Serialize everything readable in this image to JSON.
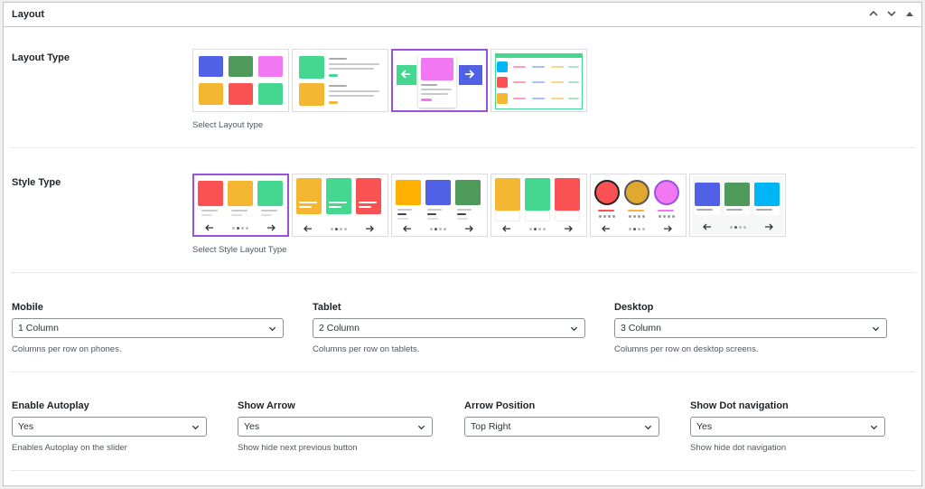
{
  "panel": {
    "title": "Layout"
  },
  "layout_type": {
    "label": "Layout Type",
    "description": "Select Layout type",
    "options": [
      "grid",
      "list",
      "slider",
      "table"
    ],
    "selected": "slider"
  },
  "style_type": {
    "label": "Style Type",
    "description": "Select Style Layout Type",
    "options": [
      "style-1",
      "style-2",
      "style-3",
      "style-4",
      "style-5",
      "style-6"
    ],
    "selected": "style-1"
  },
  "columns": {
    "mobile": {
      "label": "Mobile",
      "value": "1 Column",
      "description": "Columns per row on phones."
    },
    "tablet": {
      "label": "Tablet",
      "value": "2 Column",
      "description": "Columns per row on tablets."
    },
    "desktop": {
      "label": "Desktop",
      "value": "3 Column",
      "description": "Columns per row on desktop screens."
    }
  },
  "slider": {
    "autoplay": {
      "label": "Enable Autoplay",
      "value": "Yes",
      "description": "Enables Autoplay on the slider"
    },
    "show_arrow": {
      "label": "Show Arrow",
      "value": "Yes",
      "description": "Show hide next previous button"
    },
    "arrow_position": {
      "label": "Arrow Position",
      "value": "Top Right",
      "description": ""
    },
    "show_dots": {
      "label": "Show Dot navigation",
      "value": "Yes",
      "description": "Show hide dot navigation"
    }
  },
  "colors": {
    "selected_border": "#9b51e0",
    "blue": "#5061e6",
    "green": "#4f9a5b",
    "pink": "#f178f2",
    "yellow": "#f5b731",
    "red": "#fa5252",
    "mint": "#45d68f",
    "cyan": "#00b5f5"
  }
}
